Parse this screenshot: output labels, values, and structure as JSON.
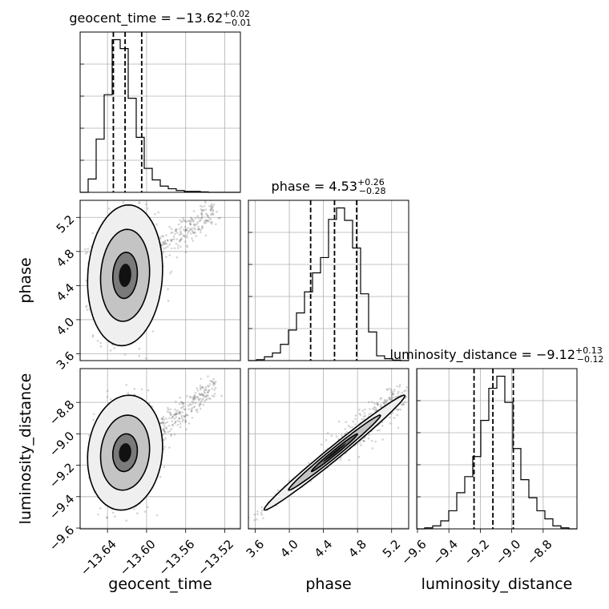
{
  "chart_data": {
    "type": "corner",
    "parameters": [
      "geocent_time",
      "phase",
      "luminosity_distance"
    ],
    "axis_labels": {
      "geocent_time": "geocent_time",
      "phase": "phase",
      "luminosity_distance": "luminosity_distance"
    },
    "ranges": {
      "geocent_time": [
        -13.668,
        -13.504
      ],
      "phase": [
        3.52,
        5.4
      ],
      "luminosity_distance": [
        -9.605,
        -8.585
      ]
    },
    "ticks": {
      "geocent_time": [
        -13.64,
        -13.6,
        -13.56,
        -13.52
      ],
      "phase": [
        3.6,
        4.0,
        4.4,
        4.8,
        5.2
      ],
      "luminosity_distance": [
        -9.6,
        -9.4,
        -9.2,
        -9.0,
        -8.8
      ]
    },
    "tick_labels": {
      "geocent_time": [
        "−13.64",
        "−13.60",
        "−13.56",
        "−13.52"
      ],
      "phase": [
        "3.6",
        "4.0",
        "4.4",
        "4.8",
        "5.2"
      ],
      "luminosity_distance": [
        "−9.6",
        "−9.4",
        "−9.2",
        "−9.0",
        "−8.8"
      ]
    },
    "titles": [
      {
        "param": "geocent_time",
        "prefix": "geocent_time = −13.62",
        "sup": "+0.02",
        "sub": "−0.01"
      },
      {
        "param": "phase",
        "prefix": "phase = 4.53",
        "sup": "+0.26",
        "sub": "−0.28"
      },
      {
        "param": "luminosity_distance",
        "prefix": "luminosity_distance = −9.12",
        "sup": "+0.13",
        "sub": "−0.12"
      }
    ],
    "quantiles": {
      "geocent_time": [
        -13.634,
        -13.622,
        -13.605
      ],
      "phase": [
        4.25,
        4.53,
        4.79
      ],
      "luminosity_distance": [
        -9.24,
        -9.12,
        -8.99
      ]
    },
    "histograms": {
      "geocent_time": {
        "edges": [
          -13.668,
          -13.6598,
          -13.6516,
          -13.6434,
          -13.6352,
          -13.627,
          -13.6188,
          -13.6106,
          -13.6024,
          -13.5942,
          -13.586,
          -13.5778,
          -13.5696,
          -13.5614,
          -13.5532,
          -13.545,
          -13.5368,
          -13.5286,
          -13.5204,
          -13.5122,
          -13.504
        ],
        "counts": [
          0,
          15,
          60,
          110,
          172,
          162,
          106,
          62,
          27,
          14,
          7,
          4,
          2,
          1,
          1,
          0.5,
          0,
          0,
          0,
          0
        ]
      },
      "phase": {
        "edges": [
          3.52,
          3.614,
          3.708,
          3.802,
          3.896,
          3.99,
          4.084,
          4.178,
          4.272,
          4.366,
          4.46,
          4.554,
          4.648,
          4.742,
          4.836,
          4.93,
          5.024,
          5.118,
          5.212,
          5.306,
          5.4
        ],
        "counts": [
          0,
          1,
          4,
          8,
          17,
          32,
          50,
          72,
          92,
          108,
          148,
          160,
          147,
          118,
          70,
          30,
          5,
          2,
          0.5,
          0
        ]
      },
      "luminosity_distance": {
        "edges": [
          -9.605,
          -9.554,
          -9.503,
          -9.452,
          -9.401,
          -9.35,
          -9.299,
          -9.248,
          -9.197,
          -9.146,
          -9.095,
          -9.044,
          -8.993,
          -8.942,
          -8.891,
          -8.84,
          -8.789,
          -8.738,
          -8.687,
          -8.636,
          -8.585
        ],
        "counts": [
          0,
          1,
          3,
          8,
          18,
          36,
          52,
          72,
          108,
          140,
          152,
          126,
          80,
          49,
          31,
          18,
          10,
          3,
          1,
          0
        ]
      }
    },
    "density_2d": [
      {
        "x": "geocent_time",
        "y": "phase",
        "center": [
          -13.622,
          4.52
        ],
        "covariance": [
          [
            0.00016,
            0.00031
          ],
          [
            0.00031,
            0.074
          ]
        ],
        "tail_to": [
          -13.53,
          5.3
        ]
      },
      {
        "x": "geocent_time",
        "y": "luminosity_distance",
        "center": [
          -13.622,
          -9.12
        ],
        "covariance": [
          [
            0.00016,
            0.00016
          ],
          [
            0.00016,
            0.0145
          ]
        ],
        "tail_to": [
          -13.53,
          -8.7
        ]
      },
      {
        "x": "phase",
        "y": "luminosity_distance",
        "center": [
          4.53,
          -9.12
        ],
        "covariance": [
          [
            0.074,
            0.0324
          ],
          [
            0.0324,
            0.0145
          ]
        ],
        "tail_to": [
          5.3,
          -8.74
        ]
      }
    ],
    "grid": true,
    "contour_levels": [
      0.39,
      0.86,
      0.99
    ]
  }
}
